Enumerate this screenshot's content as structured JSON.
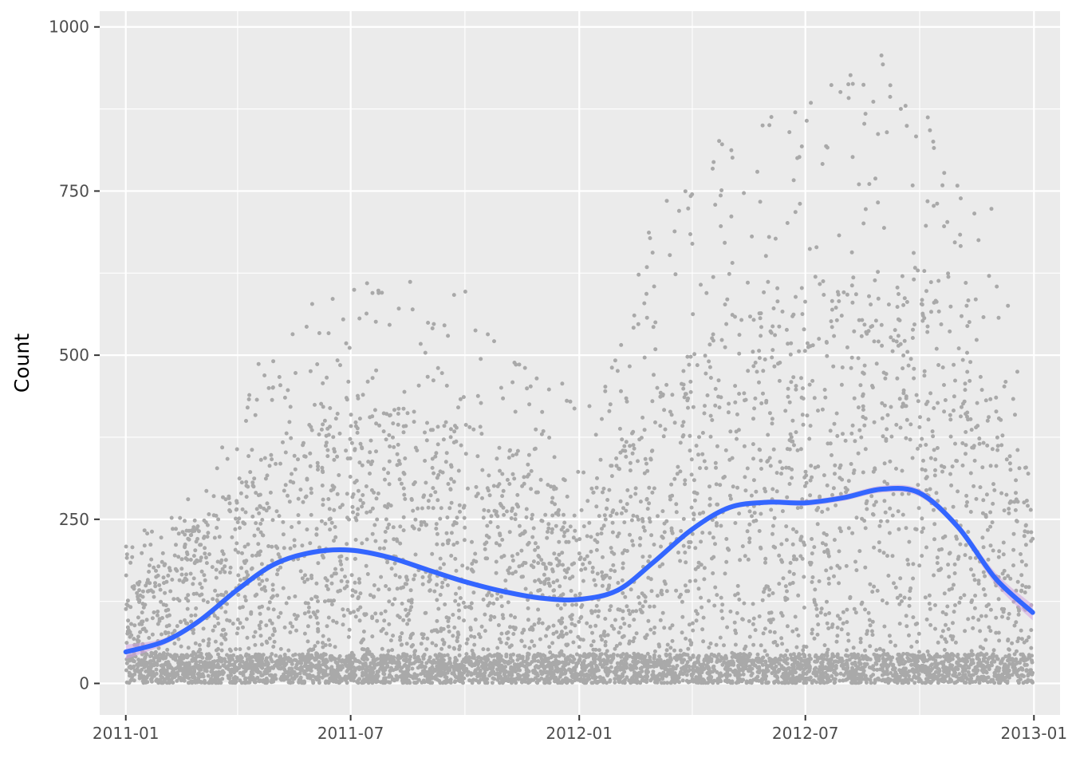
{
  "chart_data": {
    "type": "scatter",
    "xlabel": "",
    "ylabel": "Count",
    "x_axis_type": "date",
    "xlim": [
      "2010-12-11",
      "2013-01-22"
    ],
    "ylim": [
      -48,
      1024
    ],
    "x_ticks": [
      {
        "value": "2011-01-01",
        "label": "2011-01"
      },
      {
        "value": "2011-07-01",
        "label": "2011-07"
      },
      {
        "value": "2012-01-01",
        "label": "2012-01"
      },
      {
        "value": "2012-07-01",
        "label": "2012-07"
      },
      {
        "value": "2013-01-01",
        "label": "2013-01"
      }
    ],
    "x_minor_ticks": [
      "2011-04-01",
      "2011-10-01",
      "2012-04-01",
      "2012-10-01"
    ],
    "y_ticks": [
      0,
      250,
      500,
      750,
      1000
    ],
    "y_tick_labels": [
      "0",
      "250",
      "500",
      "750",
      "1000"
    ],
    "y_minor_ticks": [
      125,
      375,
      625,
      875
    ],
    "grid": true,
    "legend": "none",
    "colors": {
      "panel_background": "#ebebeb",
      "gridline": "#ffffff",
      "points": "#a9a9a9",
      "smooth_line": "#3366ff",
      "smooth_band": "#d0a0e0"
    },
    "series": [
      {
        "kind": "points",
        "description": "hourly counts",
        "n_points": 17379,
        "x_range": [
          "2011-01-01",
          "2012-12-31"
        ],
        "envelope_max": [
          {
            "x": "2011-01-01",
            "y": 220
          },
          {
            "x": "2011-02-01",
            "y": 250
          },
          {
            "x": "2011-03-01",
            "y": 300
          },
          {
            "x": "2011-04-01",
            "y": 400
          },
          {
            "x": "2011-05-01",
            "y": 560
          },
          {
            "x": "2011-06-01",
            "y": 610
          },
          {
            "x": "2011-07-01",
            "y": 600
          },
          {
            "x": "2011-08-01",
            "y": 640
          },
          {
            "x": "2011-09-01",
            "y": 600
          },
          {
            "x": "2011-10-01",
            "y": 600
          },
          {
            "x": "2011-11-01",
            "y": 500
          },
          {
            "x": "2011-12-01",
            "y": 480
          },
          {
            "x": "2012-01-01",
            "y": 450
          },
          {
            "x": "2012-02-01",
            "y": 500
          },
          {
            "x": "2012-03-01",
            "y": 720
          },
          {
            "x": "2012-04-01",
            "y": 820
          },
          {
            "x": "2012-05-01",
            "y": 850
          },
          {
            "x": "2012-06-01",
            "y": 880
          },
          {
            "x": "2012-07-01",
            "y": 900
          },
          {
            "x": "2012-08-01",
            "y": 920
          },
          {
            "x": "2012-09-01",
            "y": 960
          },
          {
            "x": "2012-10-01",
            "y": 950
          },
          {
            "x": "2012-11-01",
            "y": 760
          },
          {
            "x": "2012-12-01",
            "y": 720
          },
          {
            "x": "2012-12-31",
            "y": 320
          }
        ],
        "typical_mid": [
          {
            "x": "2011-01-01",
            "y": 90
          },
          {
            "x": "2011-04-01",
            "y": 200
          },
          {
            "x": "2011-07-01",
            "y": 280
          },
          {
            "x": "2011-10-01",
            "y": 250
          },
          {
            "x": "2012-01-01",
            "y": 170
          },
          {
            "x": "2012-04-01",
            "y": 320
          },
          {
            "x": "2012-07-01",
            "y": 380
          },
          {
            "x": "2012-10-01",
            "y": 400
          },
          {
            "x": "2012-12-31",
            "y": 200
          }
        ]
      },
      {
        "kind": "smooth",
        "description": "smoothed trend with confidence band",
        "points": [
          {
            "x": "2011-01-01",
            "y": 48
          },
          {
            "x": "2011-02-01",
            "y": 64
          },
          {
            "x": "2011-03-01",
            "y": 95
          },
          {
            "x": "2011-04-01",
            "y": 143
          },
          {
            "x": "2011-05-01",
            "y": 182
          },
          {
            "x": "2011-06-01",
            "y": 200
          },
          {
            "x": "2011-07-01",
            "y": 203
          },
          {
            "x": "2011-08-01",
            "y": 192
          },
          {
            "x": "2011-09-01",
            "y": 173
          },
          {
            "x": "2011-10-01",
            "y": 155
          },
          {
            "x": "2011-11-01",
            "y": 140
          },
          {
            "x": "2011-12-01",
            "y": 130
          },
          {
            "x": "2012-01-01",
            "y": 128
          },
          {
            "x": "2012-02-01",
            "y": 142
          },
          {
            "x": "2012-03-01",
            "y": 185
          },
          {
            "x": "2012-04-01",
            "y": 235
          },
          {
            "x": "2012-05-01",
            "y": 268
          },
          {
            "x": "2012-06-01",
            "y": 276
          },
          {
            "x": "2012-07-01",
            "y": 275
          },
          {
            "x": "2012-08-01",
            "y": 283
          },
          {
            "x": "2012-09-01",
            "y": 296
          },
          {
            "x": "2012-10-01",
            "y": 290
          },
          {
            "x": "2012-11-01",
            "y": 238
          },
          {
            "x": "2012-12-01",
            "y": 160
          },
          {
            "x": "2012-12-31",
            "y": 108
          }
        ],
        "band_halfwidth": [
          {
            "x": "2011-01-01",
            "y": 11
          },
          {
            "x": "2011-02-01",
            "y": 5
          },
          {
            "x": "2011-04-01",
            "y": 4
          },
          {
            "x": "2012-06-01",
            "y": 4
          },
          {
            "x": "2012-11-01",
            "y": 6
          },
          {
            "x": "2012-12-31",
            "y": 12
          }
        ]
      }
    ]
  }
}
